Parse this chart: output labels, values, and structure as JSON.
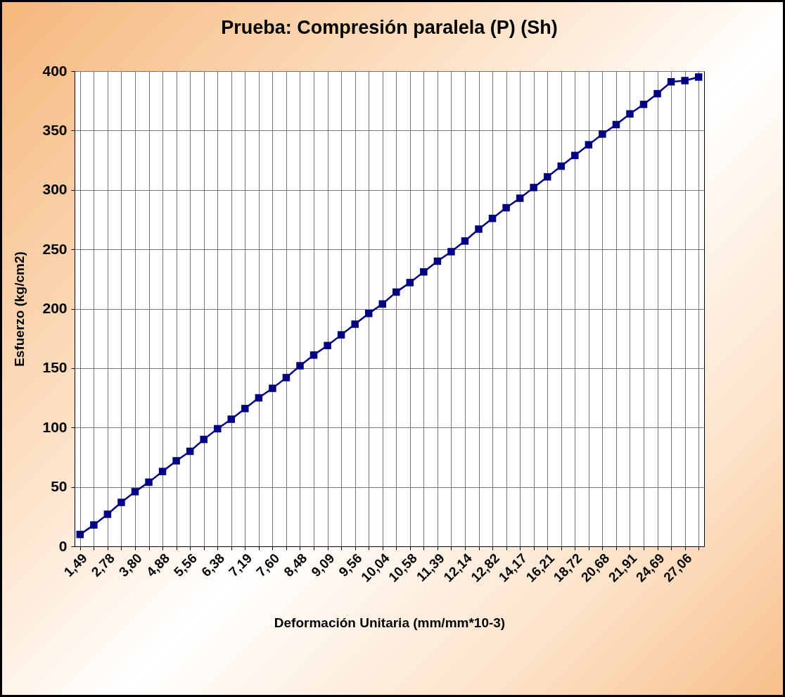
{
  "chart_data": {
    "type": "line",
    "title": "Prueba: Compresión paralela (P) (Sh)",
    "xlabel": "Deformación Unitaria (mm/mm*10-3)",
    "ylabel": "Esfuerzo  (kg/cm2)",
    "categories": [
      "1,49",
      null,
      "2,78",
      null,
      "3,80",
      null,
      "4,88",
      null,
      "5,56",
      null,
      "6,38",
      null,
      "7,19",
      null,
      "7,60",
      null,
      "8,48",
      null,
      "9,09",
      null,
      "9,56",
      null,
      "10,04",
      null,
      "10,58",
      null,
      "11,39",
      null,
      "12,14",
      null,
      "12,82",
      null,
      "14,17",
      null,
      "16,21",
      null,
      "18,72",
      null,
      "20,68",
      null,
      "21,91",
      null,
      "24,69",
      null,
      "27,06",
      null
    ],
    "series": [
      {
        "color": "#000080",
        "values": [
          10,
          18,
          27,
          37,
          46,
          54,
          63,
          72,
          80,
          90,
          99,
          107,
          116,
          125,
          133,
          142,
          152,
          161,
          169,
          178,
          187,
          196,
          204,
          214,
          222,
          231,
          240,
          248,
          257,
          267,
          276,
          285,
          293,
          302,
          311,
          320,
          329,
          338,
          347,
          355,
          364,
          372,
          381,
          391,
          392,
          395
        ]
      }
    ],
    "ylim": [
      0,
      400
    ],
    "yticks": [
      0,
      50,
      100,
      150,
      200,
      250,
      300,
      350,
      400
    ],
    "grid": true,
    "marker": "square",
    "line_style": "solid"
  }
}
